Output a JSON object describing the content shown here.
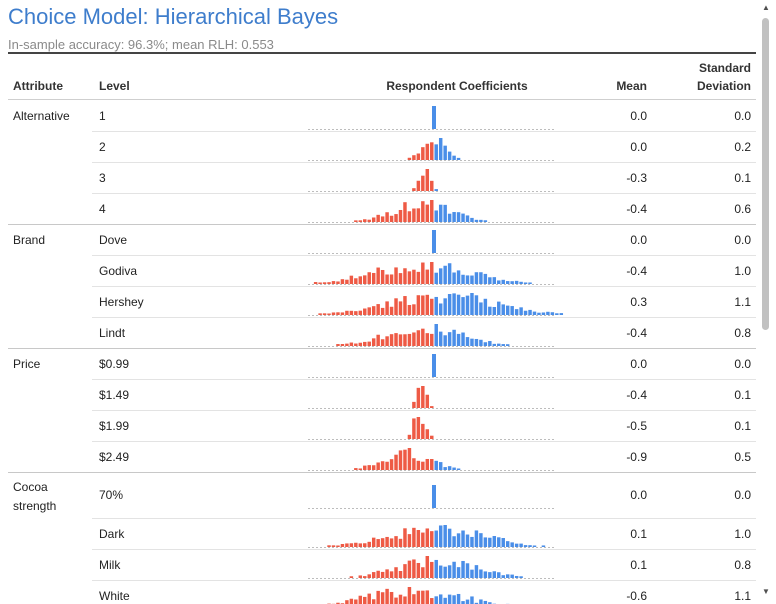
{
  "title": "Choice Model: Hierarchical Bayes",
  "subtitle": "In-sample accuracy: 96.3%; mean RLH: 0.553",
  "headers": {
    "attribute": "Attribute",
    "level": "Level",
    "coefficients": "Respondent Coefficients",
    "mean": "Mean",
    "sd_line1": "Standard",
    "sd_line2": "Deviation"
  },
  "colors": {
    "title": "#3E7DCC",
    "positive": "#4A8EE8",
    "negative": "#EE5A45",
    "baseline": "#BDBDBD"
  },
  "scroll_icons": {
    "up": "▲",
    "down": "▼"
  },
  "chart_data": {
    "type": "table",
    "title": "Choice Model: Hierarchical Bayes",
    "coef_range": [
      -4.5,
      4.5
    ],
    "rows": [
      {
        "attribute": "Alternative",
        "level": "1",
        "mean": "0.0",
        "sd": "0.0",
        "dist": {
          "center": 0.0,
          "spread": 0.0
        }
      },
      {
        "attribute": "",
        "level": "2",
        "mean": "0.0",
        "sd": "0.2",
        "dist": {
          "center": 0.0,
          "spread": 0.25
        }
      },
      {
        "attribute": "",
        "level": "3",
        "mean": "-0.3",
        "sd": "0.1",
        "dist": {
          "center": -0.3,
          "spread": 0.12
        }
      },
      {
        "attribute": "",
        "level": "4",
        "mean": "-0.4",
        "sd": "0.6",
        "dist": {
          "center": -0.4,
          "spread": 0.6
        }
      },
      {
        "attribute": "Brand",
        "level": "Dove",
        "mean": "0.0",
        "sd": "0.0",
        "dist": {
          "center": 0.0,
          "spread": 0.0
        }
      },
      {
        "attribute": "",
        "level": "Godiva",
        "mean": "-0.4",
        "sd": "1.0",
        "dist": {
          "center": -0.4,
          "spread": 1.0
        }
      },
      {
        "attribute": "",
        "level": "Hershey",
        "mean": "0.3",
        "sd": "1.1",
        "dist": {
          "center": 0.3,
          "spread": 1.1
        }
      },
      {
        "attribute": "",
        "level": "Lindt",
        "mean": "-0.4",
        "sd": "0.8",
        "dist": {
          "center": -0.4,
          "spread": 0.8
        }
      },
      {
        "attribute": "Price",
        "level": "$0.99",
        "mean": "0.0",
        "sd": "0.0",
        "dist": {
          "center": 0.0,
          "spread": 0.0
        }
      },
      {
        "attribute": "",
        "level": "$1.49",
        "mean": "-0.4",
        "sd": "0.1",
        "dist": {
          "center": -0.4,
          "spread": 0.1
        }
      },
      {
        "attribute": "",
        "level": "$1.99",
        "mean": "-0.5",
        "sd": "0.1",
        "dist": {
          "center": -0.5,
          "spread": 0.12
        }
      },
      {
        "attribute": "",
        "level": "$2.49",
        "mean": "-0.9",
        "sd": "0.5",
        "dist": {
          "center": -0.9,
          "spread": 0.5
        }
      },
      {
        "attribute": "Cocoa strength",
        "level": "70%",
        "mean": "0.0",
        "sd": "0.0",
        "dist": {
          "center": 0.0,
          "spread": 0.0
        }
      },
      {
        "attribute": "",
        "level": "Dark",
        "mean": "0.1",
        "sd": "1.0",
        "dist": {
          "center": 0.1,
          "spread": 1.0
        }
      },
      {
        "attribute": "",
        "level": "Milk",
        "mean": "0.1",
        "sd": "0.8",
        "dist": {
          "center": 0.1,
          "spread": 0.8
        }
      },
      {
        "attribute": "",
        "level": "White",
        "mean": "-0.6",
        "sd": "1.1",
        "dist": {
          "center": -0.6,
          "spread": 1.1
        }
      }
    ]
  }
}
